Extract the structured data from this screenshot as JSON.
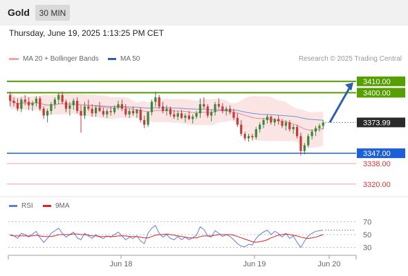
{
  "header": {
    "instrument": "Gold",
    "timeframe_button": "30 MIN",
    "timestamp": "Thursday, June 19, 2025 1:13:25 PM CET"
  },
  "legend": {
    "bollinger": "MA 20 + Bollinger Bands",
    "ma50": "MA 50",
    "copyright": "Research © 2025 Trading Central"
  },
  "rsi_legend": {
    "rsi": "RSI",
    "ma9": "9MA"
  },
  "colors": {
    "bull": "#3a8a3a",
    "bear": "#c73a3a",
    "bb_fill": "#fbe4e4",
    "ma20": "#e88b8b",
    "ma50": "#3a6fd0",
    "resistance": "#55a000",
    "support": "#1d5fd8",
    "target_line": "#f0a0a0",
    "current_price_bg": "#2a2a2a",
    "arrow": "#2d5fae",
    "rsi_line": "#5b7fd9",
    "rsi_ma": "#e02020"
  },
  "chart_data": [
    {
      "type": "candlestick",
      "title": "Gold",
      "timeframe": "30 MIN",
      "x_tick_labels": [
        "Jun 18",
        "Jun 19",
        "Jun 20"
      ],
      "ylim": [
        3312,
        3422
      ],
      "grid": false,
      "legend_position": "top-left",
      "levels": [
        {
          "value": 3410.0,
          "label": "3410.00",
          "kind": "resistance"
        },
        {
          "value": 3400.0,
          "label": "3400.00",
          "kind": "resistance"
        },
        {
          "value": 3373.99,
          "label": "3373.99",
          "kind": "current"
        },
        {
          "value": 3347.0,
          "label": "3347.00",
          "kind": "support"
        },
        {
          "value": 3338.0,
          "label": "3338.00",
          "kind": "target"
        },
        {
          "value": 3320.0,
          "label": "3320.00",
          "kind": "target"
        }
      ],
      "forecast_arrow": {
        "from": 3374,
        "to": 3409
      },
      "candles": [
        [
          3398,
          3401,
          3388,
          3393
        ],
        [
          3393,
          3396,
          3388,
          3391
        ],
        [
          3391,
          3395,
          3384,
          3386
        ],
        [
          3386,
          3396,
          3383,
          3394
        ],
        [
          3394,
          3398,
          3389,
          3392
        ],
        [
          3392,
          3396,
          3385,
          3389
        ],
        [
          3389,
          3393,
          3384,
          3391
        ],
        [
          3391,
          3397,
          3388,
          3395
        ],
        [
          3395,
          3397,
          3384,
          3386
        ],
        [
          3386,
          3388,
          3377,
          3380
        ],
        [
          3380,
          3386,
          3374,
          3384
        ],
        [
          3384,
          3392,
          3381,
          3390
        ],
        [
          3390,
          3396,
          3386,
          3394
        ],
        [
          3394,
          3400,
          3390,
          3398
        ],
        [
          3398,
          3401,
          3390,
          3392
        ],
        [
          3392,
          3394,
          3383,
          3386
        ],
        [
          3386,
          3392,
          3380,
          3389
        ],
        [
          3389,
          3395,
          3385,
          3393
        ],
        [
          3393,
          3396,
          3382,
          3384
        ],
        [
          3384,
          3389,
          3365,
          3380
        ],
        [
          3380,
          3392,
          3377,
          3388
        ],
        [
          3388,
          3394,
          3384,
          3386
        ],
        [
          3386,
          3390,
          3379,
          3382
        ],
        [
          3382,
          3389,
          3379,
          3387
        ],
        [
          3387,
          3392,
          3383,
          3384
        ],
        [
          3384,
          3387,
          3379,
          3381
        ],
        [
          3381,
          3386,
          3378,
          3384
        ],
        [
          3384,
          3388,
          3380,
          3383
        ],
        [
          3383,
          3389,
          3381,
          3387
        ],
        [
          3387,
          3393,
          3385,
          3390
        ],
        [
          3390,
          3394,
          3384,
          3386
        ],
        [
          3386,
          3390,
          3379,
          3381
        ],
        [
          3381,
          3386,
          3378,
          3384
        ],
        [
          3384,
          3388,
          3380,
          3382
        ],
        [
          3382,
          3386,
          3378,
          3385
        ],
        [
          3385,
          3387,
          3374,
          3376
        ],
        [
          3376,
          3380,
          3369,
          3372
        ],
        [
          3372,
          3384,
          3370,
          3383
        ],
        [
          3383,
          3394,
          3380,
          3392
        ],
        [
          3392,
          3401,
          3388,
          3396
        ],
        [
          3396,
          3398,
          3386,
          3388
        ],
        [
          3388,
          3392,
          3382,
          3384
        ],
        [
          3384,
          3389,
          3380,
          3386
        ],
        [
          3386,
          3388,
          3379,
          3381
        ],
        [
          3381,
          3385,
          3377,
          3379
        ],
        [
          3379,
          3384,
          3376,
          3382
        ],
        [
          3382,
          3385,
          3377,
          3378
        ],
        [
          3378,
          3382,
          3374,
          3380
        ],
        [
          3380,
          3384,
          3376,
          3377
        ],
        [
          3377,
          3381,
          3373,
          3379
        ],
        [
          3379,
          3384,
          3377,
          3382
        ],
        [
          3382,
          3395,
          3378,
          3390
        ],
        [
          3390,
          3396,
          3386,
          3388
        ],
        [
          3388,
          3390,
          3378,
          3380
        ],
        [
          3380,
          3385,
          3375,
          3383
        ],
        [
          3383,
          3392,
          3380,
          3390
        ],
        [
          3390,
          3395,
          3386,
          3388
        ],
        [
          3388,
          3391,
          3382,
          3384
        ],
        [
          3384,
          3388,
          3380,
          3386
        ],
        [
          3386,
          3389,
          3381,
          3383
        ],
        [
          3383,
          3386,
          3376,
          3378
        ],
        [
          3378,
          3382,
          3370,
          3372
        ],
        [
          3372,
          3376,
          3362,
          3364
        ],
        [
          3364,
          3366,
          3358,
          3360
        ],
        [
          3360,
          3364,
          3357,
          3362
        ],
        [
          3362,
          3364,
          3358,
          3361
        ],
        [
          3361,
          3370,
          3359,
          3368
        ],
        [
          3368,
          3374,
          3365,
          3372
        ],
        [
          3372,
          3378,
          3369,
          3376
        ],
        [
          3376,
          3381,
          3373,
          3379
        ],
        [
          3379,
          3380,
          3372,
          3374
        ],
        [
          3374,
          3378,
          3371,
          3377
        ],
        [
          3377,
          3380,
          3372,
          3375
        ],
        [
          3375,
          3377,
          3369,
          3371
        ],
        [
          3371,
          3376,
          3367,
          3374
        ],
        [
          3374,
          3376,
          3366,
          3368
        ],
        [
          3368,
          3372,
          3364,
          3370
        ],
        [
          3370,
          3372,
          3360,
          3362
        ],
        [
          3362,
          3365,
          3345,
          3349
        ],
        [
          3349,
          3356,
          3346,
          3354
        ],
        [
          3354,
          3364,
          3352,
          3362
        ],
        [
          3362,
          3368,
          3359,
          3366
        ],
        [
          3366,
          3371,
          3362,
          3369
        ],
        [
          3369,
          3373,
          3366,
          3371
        ],
        [
          3371,
          3376,
          3368,
          3374
        ]
      ]
    },
    {
      "type": "line",
      "title": "RSI",
      "series": [
        {
          "name": "RSI",
          "values": [
            50,
            48,
            44,
            52,
            50,
            46,
            51,
            55,
            45,
            38,
            44,
            52,
            56,
            60,
            52,
            46,
            50,
            54,
            45,
            42,
            52,
            48,
            44,
            50,
            46,
            44,
            48,
            46,
            50,
            54,
            48,
            42,
            46,
            44,
            48,
            40,
            36,
            52,
            60,
            64,
            52,
            46,
            50,
            44,
            42,
            47,
            42,
            46,
            42,
            45,
            49,
            62,
            58,
            48,
            46,
            56,
            52,
            47,
            50,
            47,
            42,
            36,
            32,
            31,
            35,
            34,
            44,
            50,
            54,
            57,
            50,
            55,
            52,
            46,
            52,
            44,
            48,
            38,
            30,
            40,
            48,
            52,
            55,
            56,
            57
          ]
        },
        {
          "name": "9MA",
          "values": [
            49,
            48,
            48,
            48,
            48,
            48,
            48,
            49,
            48,
            47,
            47,
            47,
            48,
            50,
            50,
            50,
            50,
            51,
            51,
            50,
            50,
            49,
            48,
            48,
            47,
            47,
            47,
            47,
            47,
            48,
            48,
            48,
            47,
            47,
            47,
            46,
            45,
            45,
            47,
            49,
            50,
            50,
            51,
            50,
            49,
            48,
            47,
            46,
            45,
            45,
            45,
            47,
            48,
            48,
            48,
            49,
            50,
            50,
            50,
            50,
            49,
            47,
            45,
            43,
            41,
            39,
            38,
            39,
            40,
            42,
            45,
            47,
            49,
            50,
            51,
            50,
            49,
            48,
            46,
            45,
            44,
            45,
            46,
            48,
            50
          ]
        }
      ],
      "ylim": [
        20,
        80
      ],
      "y_tick_labels": [
        "70",
        "50",
        "30"
      ],
      "legend_position": "top-left"
    }
  ]
}
